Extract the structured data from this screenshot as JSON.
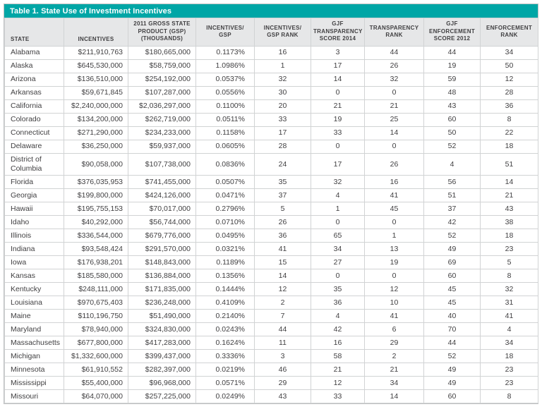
{
  "colors": {
    "accent_teal": "#00A6A6",
    "header_bg": "#E6E7E8",
    "grid_line": "#D1D3D4",
    "text": "#414042"
  },
  "chart_data": {
    "type": "table",
    "title": "Table 1. State Use of Investment Incentives",
    "columns": [
      {
        "key": "state",
        "label": "STATE"
      },
      {
        "key": "incentives",
        "label": "INCENTIVES"
      },
      {
        "key": "gsp-2011",
        "label": "2011 GROSS STATE\nPRODUCT (GSP)\n(THOUSANDS)"
      },
      {
        "key": "incentives-gsp",
        "label": "INCENTIVES/\nGSP"
      },
      {
        "key": "incentives-gsp-rank",
        "label": "INCENTIVES/\nGSP RANK"
      },
      {
        "key": "gjf-transparency-score-2014",
        "label": "GJF\nTRANSPARENCY\nSCORE 2014"
      },
      {
        "key": "transparency-rank",
        "label": "TRANSPARENCY\nRANK"
      },
      {
        "key": "gjf-enforcement-score-2012",
        "label": "GJF\nENFORCEMENT\nSCORE 2012"
      },
      {
        "key": "enforcement-rank",
        "label": "ENFORCEMENT\nRANK"
      }
    ],
    "rows": [
      [
        "Alabama",
        "$211,910,763",
        "$180,665,000",
        "0.1173%",
        "16",
        "3",
        "44",
        "44",
        "34"
      ],
      [
        "Alaska",
        "$645,530,000",
        "$58,759,000",
        "1.0986%",
        "1",
        "17",
        "26",
        "19",
        "50"
      ],
      [
        "Arizona",
        "$136,510,000",
        "$254,192,000",
        "0.0537%",
        "32",
        "14",
        "32",
        "59",
        "12"
      ],
      [
        "Arkansas",
        "$59,671,845",
        "$107,287,000",
        "0.0556%",
        "30",
        "0",
        "0",
        "48",
        "28"
      ],
      [
        "California",
        "$2,240,000,000",
        "$2,036,297,000",
        "0.1100%",
        "20",
        "21",
        "21",
        "43",
        "36"
      ],
      [
        "Colorado",
        "$134,200,000",
        "$262,719,000",
        "0.0511%",
        "33",
        "19",
        "25",
        "60",
        "8"
      ],
      [
        "Connecticut",
        "$271,290,000",
        "$234,233,000",
        "0.1158%",
        "17",
        "33",
        "14",
        "50",
        "22"
      ],
      [
        "Delaware",
        "$36,250,000",
        "$59,937,000",
        "0.0605%",
        "28",
        "0",
        "0",
        "52",
        "18"
      ],
      [
        "District of Columbia",
        "$90,058,000",
        "$107,738,000",
        "0.0836%",
        "24",
        "17",
        "26",
        "4",
        "51"
      ],
      [
        "Florida",
        "$376,035,953",
        "$741,455,000",
        "0.0507%",
        "35",
        "32",
        "16",
        "56",
        "14"
      ],
      [
        "Georgia",
        "$199,800,000",
        "$424,126,000",
        "0.0471%",
        "37",
        "4",
        "41",
        "51",
        "21"
      ],
      [
        "Hawaii",
        "$195,755,153",
        "$70,017,000",
        "0.2796%",
        "5",
        "1",
        "45",
        "37",
        "43"
      ],
      [
        "Idaho",
        "$40,292,000",
        "$56,744,000",
        "0.0710%",
        "26",
        "0",
        "0",
        "42",
        "38"
      ],
      [
        "Illinois",
        "$336,544,000",
        "$679,776,000",
        "0.0495%",
        "36",
        "65",
        "1",
        "52",
        "18"
      ],
      [
        "Indiana",
        "$93,548,424",
        "$291,570,000",
        "0.0321%",
        "41",
        "34",
        "13",
        "49",
        "23"
      ],
      [
        "Iowa",
        "$176,938,201",
        "$148,843,000",
        "0.1189%",
        "15",
        "27",
        "19",
        "69",
        "5"
      ],
      [
        "Kansas",
        "$185,580,000",
        "$136,884,000",
        "0.1356%",
        "14",
        "0",
        "0",
        "60",
        "8"
      ],
      [
        "Kentucky",
        "$248,111,000",
        "$171,835,000",
        "0.1444%",
        "12",
        "35",
        "12",
        "45",
        "32"
      ],
      [
        "Louisiana",
        "$970,675,403",
        "$236,248,000",
        "0.4109%",
        "2",
        "36",
        "10",
        "45",
        "31"
      ],
      [
        "Maine",
        "$110,196,750",
        "$51,490,000",
        "0.2140%",
        "7",
        "4",
        "41",
        "40",
        "41"
      ],
      [
        "Maryland",
        "$78,940,000",
        "$324,830,000",
        "0.0243%",
        "44",
        "42",
        "6",
        "70",
        "4"
      ],
      [
        "Massachusetts",
        "$677,800,000",
        "$417,283,000",
        "0.1624%",
        "11",
        "16",
        "29",
        "44",
        "34"
      ],
      [
        "Michigan",
        "$1,332,600,000",
        "$399,437,000",
        "0.3336%",
        "3",
        "58",
        "2",
        "52",
        "18"
      ],
      [
        "Minnesota",
        "$61,910,552",
        "$282,397,000",
        "0.0219%",
        "46",
        "21",
        "21",
        "49",
        "23"
      ],
      [
        "Mississippi",
        "$55,400,000",
        "$96,968,000",
        "0.0571%",
        "29",
        "12",
        "34",
        "49",
        "23"
      ],
      [
        "Missouri",
        "$64,070,000",
        "$257,225,000",
        "0.0249%",
        "43",
        "33",
        "14",
        "60",
        "8"
      ]
    ]
  }
}
